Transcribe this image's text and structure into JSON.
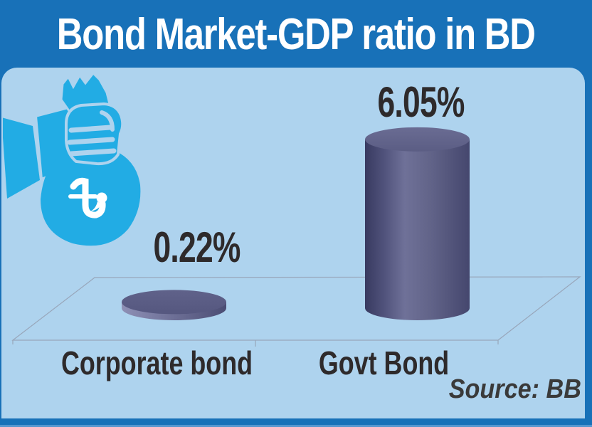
{
  "header": {
    "title": "Bond Market-GDP ratio in BD"
  },
  "source": {
    "label": "Source: BB"
  },
  "icon": {
    "name": "taka-money-bag-icon",
    "description": "hand holding a money bag marked with Bangladeshi taka symbol",
    "currency_symbol": "৳",
    "color": "#22ace4"
  },
  "colors": {
    "frame_blue": "#1871b8",
    "panel_blue": "#aed3ee",
    "icon_cyan": "#22ace4",
    "cylinder_purple": "#63658c",
    "text_dark": "#2e2a2b",
    "plane_line": "#98a6ba",
    "bottom_accent": "#5596cf"
  },
  "chart_data": {
    "type": "bar",
    "style": "3d-cylinder",
    "title": "Bond Market-GDP ratio in BD",
    "categories": [
      "Corporate bond",
      "Govt Bond"
    ],
    "values": [
      0.22,
      6.05
    ],
    "value_labels": [
      "0.22%",
      "6.05%"
    ],
    "unit": "% of GDP",
    "source": "Source: BB",
    "ylim": [
      0,
      6.05
    ],
    "grid": false,
    "legend": false
  }
}
